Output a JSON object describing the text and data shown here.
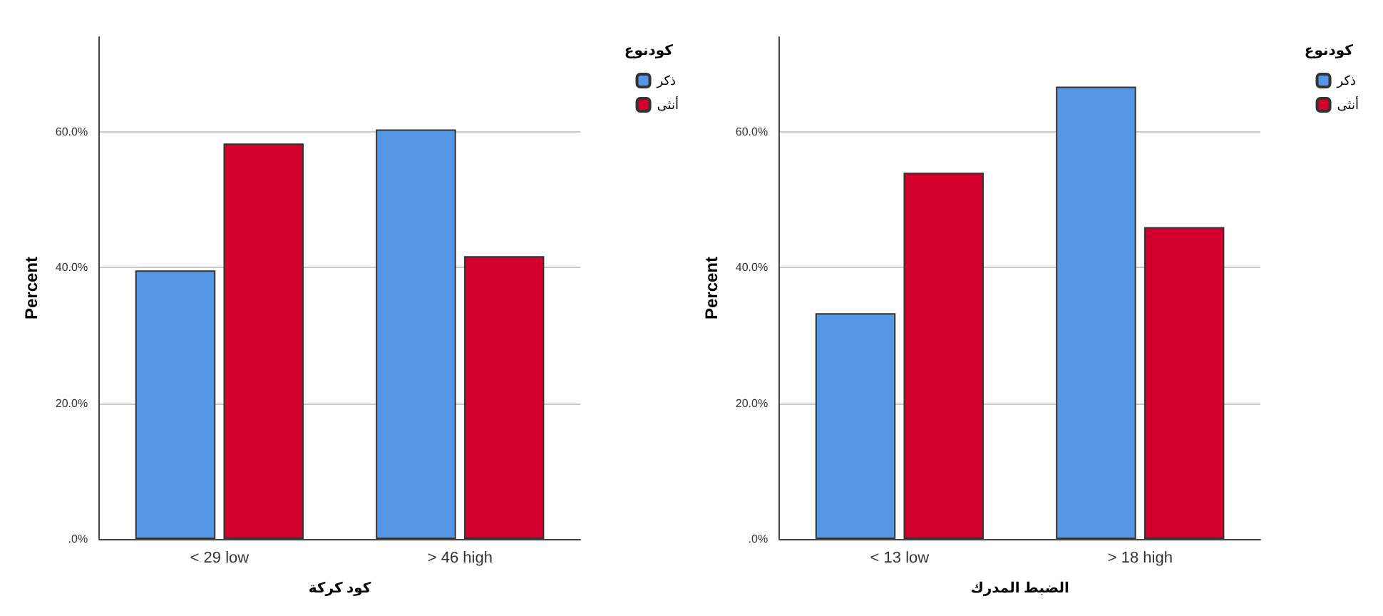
{
  "chart_data": [
    {
      "type": "bar",
      "xlabel": "كود كركة",
      "ylabel": "Percent",
      "legend_title": "كودنوع",
      "legend": "top right",
      "grid": "y",
      "categories": [
        "< 29 low",
        "> 46 high"
      ],
      "ylim": [
        0,
        74
      ],
      "yticks": [
        {
          "value": 0,
          "label": ".0%"
        },
        {
          "value": 20,
          "label": "20.0%"
        },
        {
          "value": 40,
          "label": "40.0%"
        },
        {
          "value": 60,
          "label": "60.0%"
        }
      ],
      "series": [
        {
          "name": "ذكر",
          "color": "#5596e6",
          "values": [
            39.6,
            60.4
          ]
        },
        {
          "name": "أنثى",
          "color": "#d3002e",
          "values": [
            58.3,
            41.7
          ]
        }
      ]
    },
    {
      "type": "bar",
      "xlabel": "الضبط المدرك",
      "ylabel": "Percent",
      "legend_title": "كودنوع",
      "legend": "top right",
      "grid": "y",
      "categories": [
        "< 13 low",
        "> 18 high"
      ],
      "ylim": [
        0,
        74
      ],
      "yticks": [
        {
          "value": 0,
          "label": ".0%"
        },
        {
          "value": 20,
          "label": "20.0%"
        },
        {
          "value": 40,
          "label": "40.0%"
        },
        {
          "value": 60,
          "label": "60.0%"
        }
      ],
      "series": [
        {
          "name": "ذكر",
          "color": "#5596e6",
          "values": [
            33.3,
            66.7
          ]
        },
        {
          "name": "أنثى",
          "color": "#d3002e",
          "values": [
            54.0,
            46.0
          ]
        }
      ]
    }
  ]
}
